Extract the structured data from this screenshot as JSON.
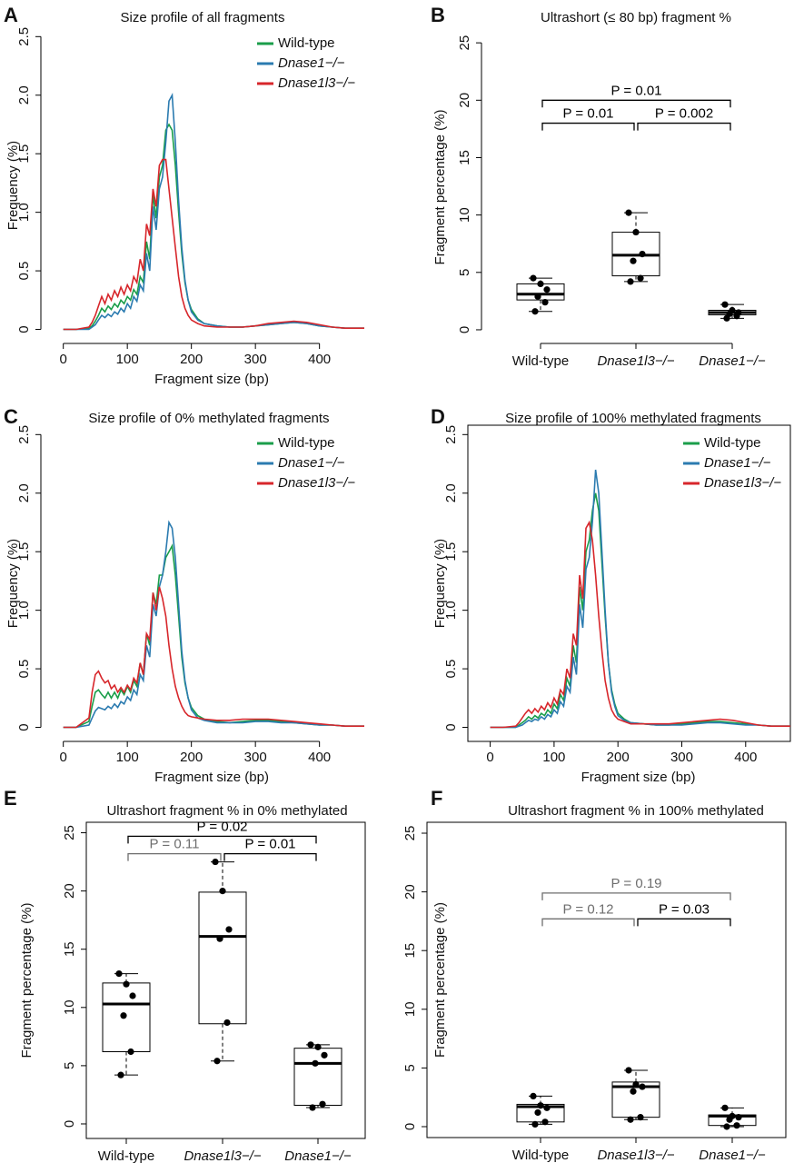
{
  "chart_data": [
    {
      "type": "line",
      "panel": "A",
      "title": "Size profile of all fragments",
      "x_label": "Fragment size (bp)",
      "y_label": "Frequency (%)",
      "x": [
        0,
        20,
        40,
        45,
        50,
        55,
        60,
        65,
        70,
        75,
        80,
        85,
        90,
        95,
        100,
        105,
        110,
        115,
        120,
        125,
        130,
        135,
        140,
        145,
        150,
        155,
        160,
        165,
        170,
        175,
        180,
        185,
        190,
        195,
        200,
        210,
        220,
        240,
        260,
        280,
        300,
        320,
        340,
        360,
        380,
        400,
        420,
        440,
        460,
        470
      ],
      "series": [
        {
          "name": "Wild-type",
          "color": "#1a9e4a",
          "values": [
            0,
            0,
            0.01,
            0.03,
            0.07,
            0.12,
            0.18,
            0.15,
            0.2,
            0.17,
            0.22,
            0.19,
            0.25,
            0.22,
            0.28,
            0.25,
            0.34,
            0.3,
            0.45,
            0.4,
            0.75,
            0.6,
            1.15,
            0.95,
            1.3,
            1.4,
            1.7,
            1.75,
            1.7,
            1.4,
            1.0,
            0.65,
            0.4,
            0.25,
            0.17,
            0.09,
            0.05,
            0.03,
            0.02,
            0.02,
            0.03,
            0.04,
            0.05,
            0.06,
            0.05,
            0.03,
            0.02,
            0.01,
            0.01,
            0.01
          ]
        },
        {
          "name": "Dnase1−/−",
          "color": "#2b7bb0",
          "values": [
            0,
            0,
            0,
            0.02,
            0.04,
            0.08,
            0.12,
            0.1,
            0.13,
            0.11,
            0.15,
            0.13,
            0.18,
            0.15,
            0.22,
            0.18,
            0.28,
            0.24,
            0.38,
            0.33,
            0.65,
            0.5,
            1.05,
            0.85,
            1.2,
            1.3,
            1.6,
            1.95,
            2.0,
            1.6,
            1.1,
            0.7,
            0.42,
            0.25,
            0.15,
            0.08,
            0.05,
            0.03,
            0.02,
            0.02,
            0.03,
            0.04,
            0.05,
            0.06,
            0.05,
            0.03,
            0.02,
            0.01,
            0.01,
            0.01
          ]
        },
        {
          "name": "Dnase1l3−/−",
          "color": "#d7262b",
          "values": [
            0,
            0,
            0.02,
            0.06,
            0.12,
            0.2,
            0.28,
            0.22,
            0.3,
            0.25,
            0.33,
            0.28,
            0.36,
            0.3,
            0.38,
            0.33,
            0.45,
            0.4,
            0.6,
            0.5,
            0.9,
            0.8,
            1.2,
            1.05,
            1.4,
            1.45,
            1.45,
            1.2,
            0.95,
            0.7,
            0.45,
            0.28,
            0.18,
            0.12,
            0.08,
            0.05,
            0.03,
            0.02,
            0.02,
            0.02,
            0.03,
            0.05,
            0.06,
            0.07,
            0.06,
            0.04,
            0.02,
            0.01,
            0.01,
            0.01
          ]
        }
      ],
      "xlim": [
        -35,
        470
      ],
      "xticks": [
        0,
        100,
        200,
        300,
        400
      ],
      "ylim": [
        -0.12,
        2.58
      ],
      "yticks": [
        0,
        0.5,
        {
          "value": 1,
          "label": "1.0"
        },
        1.5,
        {
          "value": 2,
          "label": "2.0"
        },
        2.5
      ],
      "frame": false
    },
    {
      "type": "box",
      "panel": "B",
      "title": "Ultrashort (≤ 80 bp) fragment %",
      "y_label": "Fragment percentage (%)",
      "categories": [
        "Wild-type",
        "Dnase1l3−/−",
        "Dnase1−/−"
      ],
      "groups": [
        {
          "points": [
            1.6,
            2.4,
            2.9,
            3.5,
            4.0,
            4.5
          ],
          "whisker_low": 1.6,
          "q1": 2.6,
          "median": 3.1,
          "q3": 4.0,
          "whisker_high": 4.5
        },
        {
          "points": [
            4.2,
            4.5,
            6.0,
            6.6,
            8.5,
            10.2
          ],
          "whisker_low": 4.2,
          "q1": 4.7,
          "median": 6.5,
          "q3": 8.5,
          "whisker_high": 10.2
        },
        {
          "points": [
            1.0,
            1.2,
            1.4,
            1.5,
            1.7,
            2.2
          ],
          "whisker_low": 1.0,
          "q1": 1.3,
          "median": 1.5,
          "q3": 1.7,
          "whisker_high": 2.2
        }
      ],
      "brackets": [
        {
          "label": "P = 0.01",
          "from": 0,
          "to": 1,
          "y": 18,
          "color": "#000000"
        },
        {
          "label": "P = 0.002",
          "from": 1,
          "to": 2,
          "y": 18,
          "color": "#000000"
        },
        {
          "label": "P = 0.01",
          "from": 0,
          "to": 2,
          "y": 20,
          "color": "#000000"
        }
      ],
      "ylim": [
        -1.19,
        26.04
      ],
      "yticks": [
        0,
        5,
        10,
        15,
        20,
        25
      ],
      "frame": false
    },
    {
      "type": "line",
      "panel": "C",
      "title": "Size profile of 0% methylated fragments",
      "x_label": "Fragment size (bp)",
      "y_label": "Frequency (%)",
      "x": [
        0,
        20,
        40,
        45,
        50,
        55,
        60,
        65,
        70,
        75,
        80,
        85,
        90,
        95,
        100,
        105,
        110,
        115,
        120,
        125,
        130,
        135,
        140,
        145,
        150,
        155,
        160,
        165,
        170,
        175,
        180,
        185,
        190,
        195,
        200,
        210,
        220,
        240,
        260,
        280,
        300,
        320,
        340,
        360,
        380,
        400,
        420,
        440,
        460,
        470
      ],
      "series": [
        {
          "name": "Wild-type",
          "color": "#1a9e4a",
          "values": [
            0,
            0,
            0.05,
            0.18,
            0.3,
            0.32,
            0.28,
            0.25,
            0.3,
            0.25,
            0.3,
            0.25,
            0.32,
            0.28,
            0.35,
            0.3,
            0.4,
            0.35,
            0.55,
            0.45,
            0.8,
            0.7,
            1.15,
            1.05,
            1.3,
            1.3,
            1.45,
            1.5,
            1.55,
            1.3,
            0.95,
            0.6,
            0.38,
            0.25,
            0.17,
            0.1,
            0.07,
            0.05,
            0.04,
            0.05,
            0.06,
            0.06,
            0.05,
            0.04,
            0.03,
            0.02,
            0.02,
            0.01,
            0.01,
            0.01
          ]
        },
        {
          "name": "Dnase1−/−",
          "color": "#2b7bb0",
          "values": [
            0,
            0,
            0.02,
            0.08,
            0.14,
            0.17,
            0.16,
            0.15,
            0.18,
            0.16,
            0.2,
            0.17,
            0.22,
            0.2,
            0.26,
            0.23,
            0.32,
            0.28,
            0.45,
            0.4,
            0.7,
            0.6,
            1.05,
            0.95,
            1.2,
            1.3,
            1.5,
            1.75,
            1.7,
            1.45,
            1.05,
            0.65,
            0.4,
            0.25,
            0.15,
            0.08,
            0.06,
            0.04,
            0.04,
            0.04,
            0.05,
            0.05,
            0.04,
            0.04,
            0.03,
            0.02,
            0.02,
            0.01,
            0.01,
            0.01
          ]
        },
        {
          "name": "Dnase1l3−/−",
          "color": "#d7262b",
          "values": [
            0,
            0,
            0.08,
            0.3,
            0.45,
            0.48,
            0.42,
            0.38,
            0.4,
            0.33,
            0.36,
            0.3,
            0.34,
            0.3,
            0.36,
            0.32,
            0.42,
            0.38,
            0.55,
            0.45,
            0.8,
            0.75,
            1.15,
            1.0,
            1.2,
            1.1,
            0.95,
            0.7,
            0.5,
            0.35,
            0.25,
            0.18,
            0.13,
            0.1,
            0.09,
            0.08,
            0.07,
            0.06,
            0.06,
            0.07,
            0.07,
            0.07,
            0.06,
            0.05,
            0.04,
            0.03,
            0.02,
            0.01,
            0.01,
            0.01
          ]
        }
      ],
      "xlim": [
        -35,
        470
      ],
      "xticks": [
        0,
        100,
        200,
        300,
        400
      ],
      "ylim": [
        -0.12,
        2.58
      ],
      "yticks": [
        0,
        0.5,
        {
          "value": 1,
          "label": "1.0"
        },
        1.5,
        {
          "value": 2,
          "label": "2.0"
        },
        2.5
      ],
      "frame": false
    },
    {
      "type": "line",
      "panel": "D",
      "title": "Size profile of 100% methylated fragments",
      "x_label": "Fragment size (bp)",
      "y_label": "Frequency (%)",
      "x": [
        0,
        20,
        40,
        45,
        50,
        55,
        60,
        65,
        70,
        75,
        80,
        85,
        90,
        95,
        100,
        105,
        110,
        115,
        120,
        125,
        130,
        135,
        140,
        145,
        150,
        155,
        160,
        165,
        170,
        175,
        180,
        185,
        190,
        195,
        200,
        210,
        220,
        240,
        260,
        280,
        300,
        320,
        340,
        360,
        380,
        400,
        420,
        440,
        460,
        470
      ],
      "series": [
        {
          "name": "Wild-type",
          "color": "#1a9e4a",
          "values": [
            0,
            0,
            0,
            0.02,
            0.04,
            0.06,
            0.09,
            0.07,
            0.1,
            0.08,
            0.12,
            0.1,
            0.15,
            0.12,
            0.2,
            0.16,
            0.28,
            0.23,
            0.42,
            0.35,
            0.7,
            0.55,
            1.2,
            1.0,
            1.5,
            1.6,
            1.85,
            2.0,
            1.85,
            1.4,
            0.95,
            0.55,
            0.32,
            0.2,
            0.12,
            0.07,
            0.04,
            0.03,
            0.02,
            0.02,
            0.03,
            0.04,
            0.05,
            0.05,
            0.04,
            0.03,
            0.02,
            0.01,
            0.01,
            0.01
          ]
        },
        {
          "name": "Dnase1−/−",
          "color": "#2b7bb0",
          "values": [
            0,
            0,
            0,
            0.01,
            0.02,
            0.04,
            0.06,
            0.05,
            0.07,
            0.06,
            0.09,
            0.07,
            0.11,
            0.09,
            0.15,
            0.12,
            0.22,
            0.18,
            0.35,
            0.3,
            0.6,
            0.45,
            1.05,
            0.85,
            1.35,
            1.45,
            1.75,
            2.2,
            2.0,
            1.5,
            1.0,
            0.55,
            0.3,
            0.18,
            0.1,
            0.06,
            0.04,
            0.03,
            0.02,
            0.02,
            0.02,
            0.03,
            0.04,
            0.04,
            0.03,
            0.02,
            0.02,
            0.01,
            0.01,
            0.01
          ]
        },
        {
          "name": "Dnase1l3−/−",
          "color": "#d7262b",
          "values": [
            0,
            0,
            0.01,
            0.04,
            0.08,
            0.12,
            0.15,
            0.12,
            0.16,
            0.13,
            0.18,
            0.15,
            0.21,
            0.17,
            0.25,
            0.2,
            0.32,
            0.28,
            0.5,
            0.42,
            0.8,
            0.7,
            1.3,
            1.1,
            1.7,
            1.75,
            1.6,
            1.3,
            0.95,
            0.65,
            0.4,
            0.25,
            0.15,
            0.1,
            0.07,
            0.05,
            0.03,
            0.03,
            0.03,
            0.03,
            0.04,
            0.05,
            0.06,
            0.07,
            0.06,
            0.04,
            0.02,
            0.01,
            0.01,
            0.01
          ]
        }
      ],
      "xlim": [
        -35,
        470
      ],
      "xticks": [
        0,
        100,
        200,
        300,
        400
      ],
      "ylim": [
        -0.12,
        2.58
      ],
      "yticks": [
        0,
        0.5,
        {
          "value": 1,
          "label": "1.0"
        },
        1.5,
        {
          "value": 2,
          "label": "2.0"
        },
        2.5
      ],
      "frame": true
    },
    {
      "type": "box",
      "panel": "E",
      "title": "Ultrashort fragment % in 0% methylated",
      "y_label": "Fragment percentage (%)",
      "categories": [
        "Wild-type",
        "Dnase1l3−/−",
        "Dnase1−/−"
      ],
      "groups": [
        {
          "points": [
            4.2,
            6.2,
            9.3,
            11.0,
            12.0,
            12.9
          ],
          "whisker_low": 4.2,
          "q1": 6.2,
          "median": 10.3,
          "q3": 12.1,
          "whisker_high": 12.9
        },
        {
          "points": [
            5.4,
            8.7,
            15.9,
            16.7,
            20.0,
            22.5
          ],
          "whisker_low": 5.4,
          "q1": 8.6,
          "median": 16.1,
          "q3": 19.9,
          "whisker_high": 22.5
        },
        {
          "points": [
            1.4,
            1.7,
            5.2,
            5.9,
            6.6,
            6.8
          ],
          "whisker_low": 1.4,
          "q1": 1.6,
          "median": 5.2,
          "q3": 6.5,
          "whisker_high": 6.8
        }
      ],
      "brackets": [
        {
          "label": "P = 0.11",
          "from": 0,
          "to": 1,
          "y": 23.2,
          "color": "#6e6e6e"
        },
        {
          "label": "P = 0.01",
          "from": 1,
          "to": 2,
          "y": 23.2,
          "color": "#000000"
        },
        {
          "label": "P = 0.02",
          "from": 0,
          "to": 2,
          "y": 24.7,
          "color": "#000000"
        }
      ],
      "ylim": [
        -1.25,
        25.9
      ],
      "yticks": [
        0,
        5,
        10,
        15,
        20,
        25
      ],
      "frame": true
    },
    {
      "type": "box",
      "panel": "F",
      "title": "Ultrashort fragment % in 100% methylated",
      "y_label": "Fragment percentage (%)",
      "categories": [
        "Wild-type",
        "Dnase1l3−/−",
        "Dnase1−/−"
      ],
      "groups": [
        {
          "points": [
            0.2,
            0.4,
            1.2,
            1.6,
            1.8,
            2.6
          ],
          "whisker_low": 0.2,
          "q1": 0.4,
          "median": 1.7,
          "q3": 1.9,
          "whisker_high": 2.6
        },
        {
          "points": [
            0.6,
            0.8,
            3.0,
            3.4,
            3.6,
            4.8
          ],
          "whisker_low": 0.6,
          "q1": 0.8,
          "median": 3.4,
          "q3": 3.8,
          "whisker_high": 4.8
        },
        {
          "points": [
            0.0,
            0.1,
            0.6,
            0.8,
            0.9,
            1.6
          ],
          "whisker_low": 0.0,
          "q1": 0.1,
          "median": 0.9,
          "q3": 1.0,
          "whisker_high": 1.6
        }
      ],
      "brackets": [
        {
          "label": "P = 0.12",
          "from": 0,
          "to": 1,
          "y": 17.7,
          "color": "#6e6e6e"
        },
        {
          "label": "P = 0.03",
          "from": 1,
          "to": 2,
          "y": 17.7,
          "color": "#000000"
        },
        {
          "label": "P = 0.19",
          "from": 0,
          "to": 2,
          "y": 19.9,
          "color": "#6e6e6e"
        }
      ],
      "ylim": [
        -0.93,
        25.93
      ],
      "yticks": [
        0,
        5,
        10,
        15,
        20,
        25
      ],
      "frame": true
    }
  ]
}
